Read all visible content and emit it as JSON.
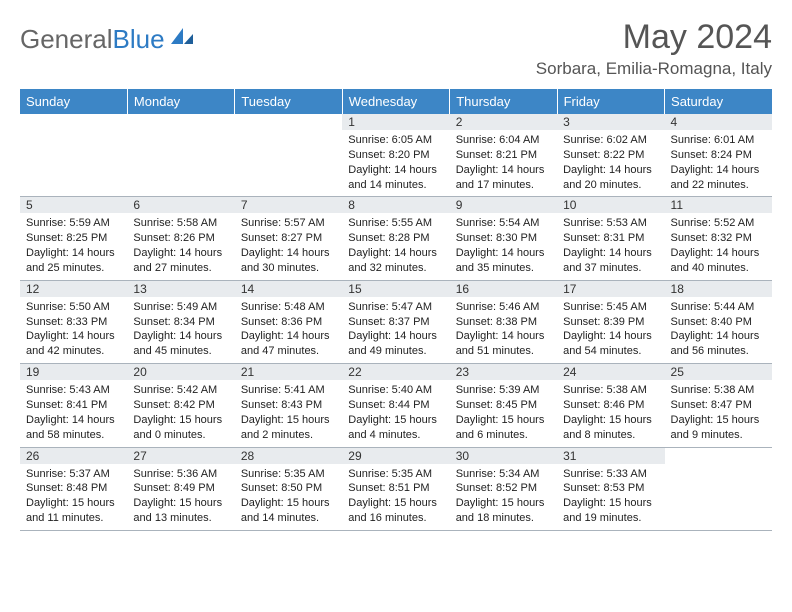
{
  "brand": {
    "part1": "General",
    "part2": "Blue"
  },
  "title": "May 2024",
  "location": "Sorbara, Emilia-Romagna, Italy",
  "colors": {
    "header_bg": "#3d86c6",
    "header_text": "#ffffff",
    "daynum_bg": "#e8ebee",
    "border": "#aab3bc",
    "logo_gray": "#666666",
    "logo_blue": "#2d7bc4",
    "title_color": "#555555"
  },
  "fonts": {
    "title_size_pt": 26,
    "location_size_pt": 13,
    "header_size_pt": 10,
    "cell_size_pt": 8
  },
  "day_headers": [
    "Sunday",
    "Monday",
    "Tuesday",
    "Wednesday",
    "Thursday",
    "Friday",
    "Saturday"
  ],
  "weeks": [
    {
      "nums": [
        "",
        "",
        "",
        "1",
        "2",
        "3",
        "4"
      ],
      "cells": [
        {
          "sunrise": "",
          "sunset": "",
          "daylight1": "",
          "daylight2": ""
        },
        {
          "sunrise": "",
          "sunset": "",
          "daylight1": "",
          "daylight2": ""
        },
        {
          "sunrise": "",
          "sunset": "",
          "daylight1": "",
          "daylight2": ""
        },
        {
          "sunrise": "Sunrise: 6:05 AM",
          "sunset": "Sunset: 8:20 PM",
          "daylight1": "Daylight: 14 hours",
          "daylight2": "and 14 minutes."
        },
        {
          "sunrise": "Sunrise: 6:04 AM",
          "sunset": "Sunset: 8:21 PM",
          "daylight1": "Daylight: 14 hours",
          "daylight2": "and 17 minutes."
        },
        {
          "sunrise": "Sunrise: 6:02 AM",
          "sunset": "Sunset: 8:22 PM",
          "daylight1": "Daylight: 14 hours",
          "daylight2": "and 20 minutes."
        },
        {
          "sunrise": "Sunrise: 6:01 AM",
          "sunset": "Sunset: 8:24 PM",
          "daylight1": "Daylight: 14 hours",
          "daylight2": "and 22 minutes."
        }
      ]
    },
    {
      "nums": [
        "5",
        "6",
        "7",
        "8",
        "9",
        "10",
        "11"
      ],
      "cells": [
        {
          "sunrise": "Sunrise: 5:59 AM",
          "sunset": "Sunset: 8:25 PM",
          "daylight1": "Daylight: 14 hours",
          "daylight2": "and 25 minutes."
        },
        {
          "sunrise": "Sunrise: 5:58 AM",
          "sunset": "Sunset: 8:26 PM",
          "daylight1": "Daylight: 14 hours",
          "daylight2": "and 27 minutes."
        },
        {
          "sunrise": "Sunrise: 5:57 AM",
          "sunset": "Sunset: 8:27 PM",
          "daylight1": "Daylight: 14 hours",
          "daylight2": "and 30 minutes."
        },
        {
          "sunrise": "Sunrise: 5:55 AM",
          "sunset": "Sunset: 8:28 PM",
          "daylight1": "Daylight: 14 hours",
          "daylight2": "and 32 minutes."
        },
        {
          "sunrise": "Sunrise: 5:54 AM",
          "sunset": "Sunset: 8:30 PM",
          "daylight1": "Daylight: 14 hours",
          "daylight2": "and 35 minutes."
        },
        {
          "sunrise": "Sunrise: 5:53 AM",
          "sunset": "Sunset: 8:31 PM",
          "daylight1": "Daylight: 14 hours",
          "daylight2": "and 37 minutes."
        },
        {
          "sunrise": "Sunrise: 5:52 AM",
          "sunset": "Sunset: 8:32 PM",
          "daylight1": "Daylight: 14 hours",
          "daylight2": "and 40 minutes."
        }
      ]
    },
    {
      "nums": [
        "12",
        "13",
        "14",
        "15",
        "16",
        "17",
        "18"
      ],
      "cells": [
        {
          "sunrise": "Sunrise: 5:50 AM",
          "sunset": "Sunset: 8:33 PM",
          "daylight1": "Daylight: 14 hours",
          "daylight2": "and 42 minutes."
        },
        {
          "sunrise": "Sunrise: 5:49 AM",
          "sunset": "Sunset: 8:34 PM",
          "daylight1": "Daylight: 14 hours",
          "daylight2": "and 45 minutes."
        },
        {
          "sunrise": "Sunrise: 5:48 AM",
          "sunset": "Sunset: 8:36 PM",
          "daylight1": "Daylight: 14 hours",
          "daylight2": "and 47 minutes."
        },
        {
          "sunrise": "Sunrise: 5:47 AM",
          "sunset": "Sunset: 8:37 PM",
          "daylight1": "Daylight: 14 hours",
          "daylight2": "and 49 minutes."
        },
        {
          "sunrise": "Sunrise: 5:46 AM",
          "sunset": "Sunset: 8:38 PM",
          "daylight1": "Daylight: 14 hours",
          "daylight2": "and 51 minutes."
        },
        {
          "sunrise": "Sunrise: 5:45 AM",
          "sunset": "Sunset: 8:39 PM",
          "daylight1": "Daylight: 14 hours",
          "daylight2": "and 54 minutes."
        },
        {
          "sunrise": "Sunrise: 5:44 AM",
          "sunset": "Sunset: 8:40 PM",
          "daylight1": "Daylight: 14 hours",
          "daylight2": "and 56 minutes."
        }
      ]
    },
    {
      "nums": [
        "19",
        "20",
        "21",
        "22",
        "23",
        "24",
        "25"
      ],
      "cells": [
        {
          "sunrise": "Sunrise: 5:43 AM",
          "sunset": "Sunset: 8:41 PM",
          "daylight1": "Daylight: 14 hours",
          "daylight2": "and 58 minutes."
        },
        {
          "sunrise": "Sunrise: 5:42 AM",
          "sunset": "Sunset: 8:42 PM",
          "daylight1": "Daylight: 15 hours",
          "daylight2": "and 0 minutes."
        },
        {
          "sunrise": "Sunrise: 5:41 AM",
          "sunset": "Sunset: 8:43 PM",
          "daylight1": "Daylight: 15 hours",
          "daylight2": "and 2 minutes."
        },
        {
          "sunrise": "Sunrise: 5:40 AM",
          "sunset": "Sunset: 8:44 PM",
          "daylight1": "Daylight: 15 hours",
          "daylight2": "and 4 minutes."
        },
        {
          "sunrise": "Sunrise: 5:39 AM",
          "sunset": "Sunset: 8:45 PM",
          "daylight1": "Daylight: 15 hours",
          "daylight2": "and 6 minutes."
        },
        {
          "sunrise": "Sunrise: 5:38 AM",
          "sunset": "Sunset: 8:46 PM",
          "daylight1": "Daylight: 15 hours",
          "daylight2": "and 8 minutes."
        },
        {
          "sunrise": "Sunrise: 5:38 AM",
          "sunset": "Sunset: 8:47 PM",
          "daylight1": "Daylight: 15 hours",
          "daylight2": "and 9 minutes."
        }
      ]
    },
    {
      "nums": [
        "26",
        "27",
        "28",
        "29",
        "30",
        "31",
        ""
      ],
      "cells": [
        {
          "sunrise": "Sunrise: 5:37 AM",
          "sunset": "Sunset: 8:48 PM",
          "daylight1": "Daylight: 15 hours",
          "daylight2": "and 11 minutes."
        },
        {
          "sunrise": "Sunrise: 5:36 AM",
          "sunset": "Sunset: 8:49 PM",
          "daylight1": "Daylight: 15 hours",
          "daylight2": "and 13 minutes."
        },
        {
          "sunrise": "Sunrise: 5:35 AM",
          "sunset": "Sunset: 8:50 PM",
          "daylight1": "Daylight: 15 hours",
          "daylight2": "and 14 minutes."
        },
        {
          "sunrise": "Sunrise: 5:35 AM",
          "sunset": "Sunset: 8:51 PM",
          "daylight1": "Daylight: 15 hours",
          "daylight2": "and 16 minutes."
        },
        {
          "sunrise": "Sunrise: 5:34 AM",
          "sunset": "Sunset: 8:52 PM",
          "daylight1": "Daylight: 15 hours",
          "daylight2": "and 18 minutes."
        },
        {
          "sunrise": "Sunrise: 5:33 AM",
          "sunset": "Sunset: 8:53 PM",
          "daylight1": "Daylight: 15 hours",
          "daylight2": "and 19 minutes."
        },
        {
          "sunrise": "",
          "sunset": "",
          "daylight1": "",
          "daylight2": ""
        }
      ]
    }
  ]
}
